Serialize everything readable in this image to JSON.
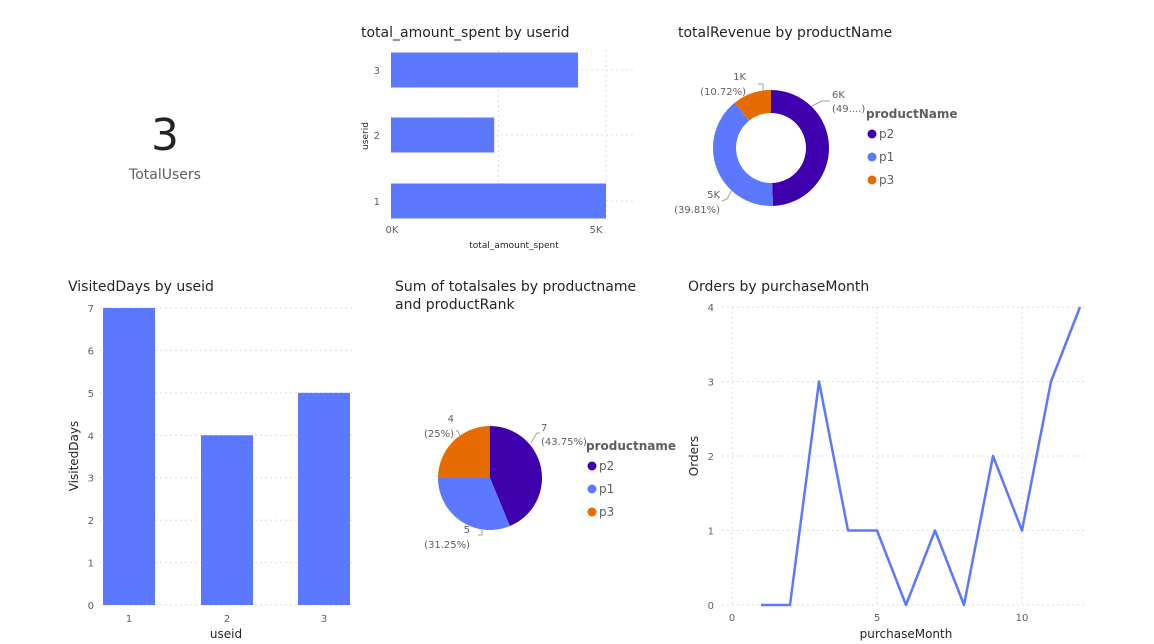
{
  "card": {
    "value": "3",
    "label": "TotalUsers"
  },
  "charts": {
    "spent": {
      "title": "total_amount_spent by userid",
      "chart_data": {
        "type": "bar",
        "orientation": "horizontal",
        "categories": [
          "3",
          "2",
          "1"
        ],
        "values": [
          4350,
          2400,
          5000
        ],
        "xlabel": "total_amount_spent",
        "ylabel": "userid",
        "xticks": [
          "0K",
          "5K"
        ],
        "xlim": [
          0,
          5000
        ],
        "color": "#5B78FF"
      }
    },
    "revenue": {
      "title": "totalRevenue by productName",
      "chart_data": {
        "type": "pie",
        "donut": true,
        "legend_title": "productName",
        "slices": [
          {
            "name": "p2",
            "value_label": "6K",
            "pct_label": "(49....)",
            "pct": 49.47,
            "color": "#3F00AE"
          },
          {
            "name": "p1",
            "value_label": "5K",
            "pct_label": "(39.81%)",
            "pct": 39.81,
            "color": "#5B78FF"
          },
          {
            "name": "p3",
            "value_label": "1K",
            "pct_label": "(10.72%)",
            "pct": 10.72,
            "color": "#E66C00"
          }
        ]
      }
    },
    "visited": {
      "title": "VisitedDays by useid",
      "chart_data": {
        "type": "bar",
        "categories": [
          "1",
          "2",
          "3"
        ],
        "values": [
          7,
          4,
          5
        ],
        "xlabel": "useid",
        "ylabel": "VisitedDays",
        "ylim": [
          0,
          7
        ],
        "yticks": [
          "0",
          "1",
          "2",
          "3",
          "4",
          "5",
          "6",
          "7"
        ],
        "color": "#5B78FF"
      }
    },
    "sales": {
      "title": "Sum of totalsales by productname and productRank",
      "chart_data": {
        "type": "pie",
        "legend_title": "productname",
        "slices": [
          {
            "name": "p2",
            "value_label": "7",
            "pct_label": "(43.75%)",
            "pct": 43.75,
            "color": "#3F00AE"
          },
          {
            "name": "p1",
            "value_label": "5",
            "pct_label": "(31.25%)",
            "pct": 31.25,
            "color": "#5B78FF"
          },
          {
            "name": "p3",
            "value_label": "4",
            "pct_label": "(25%)",
            "pct": 25,
            "color": "#E66C00"
          }
        ]
      }
    },
    "orders": {
      "title": "Orders by purchaseMonth",
      "chart_data": {
        "type": "line",
        "x": [
          1,
          2,
          3,
          4,
          5,
          6,
          7,
          8,
          9,
          10,
          11,
          12
        ],
        "y": [
          0,
          0,
          3,
          1,
          1,
          0,
          1,
          0,
          2,
          1,
          3,
          4
        ],
        "xlabel": "purchaseMonth",
        "ylabel": "Orders",
        "xlim": [
          0,
          12
        ],
        "ylim": [
          0,
          4
        ],
        "xticks": [
          "0",
          "5",
          "10"
        ],
        "yticks": [
          "0",
          "1",
          "2",
          "3",
          "4"
        ],
        "color": "#5B78FF"
      }
    }
  }
}
